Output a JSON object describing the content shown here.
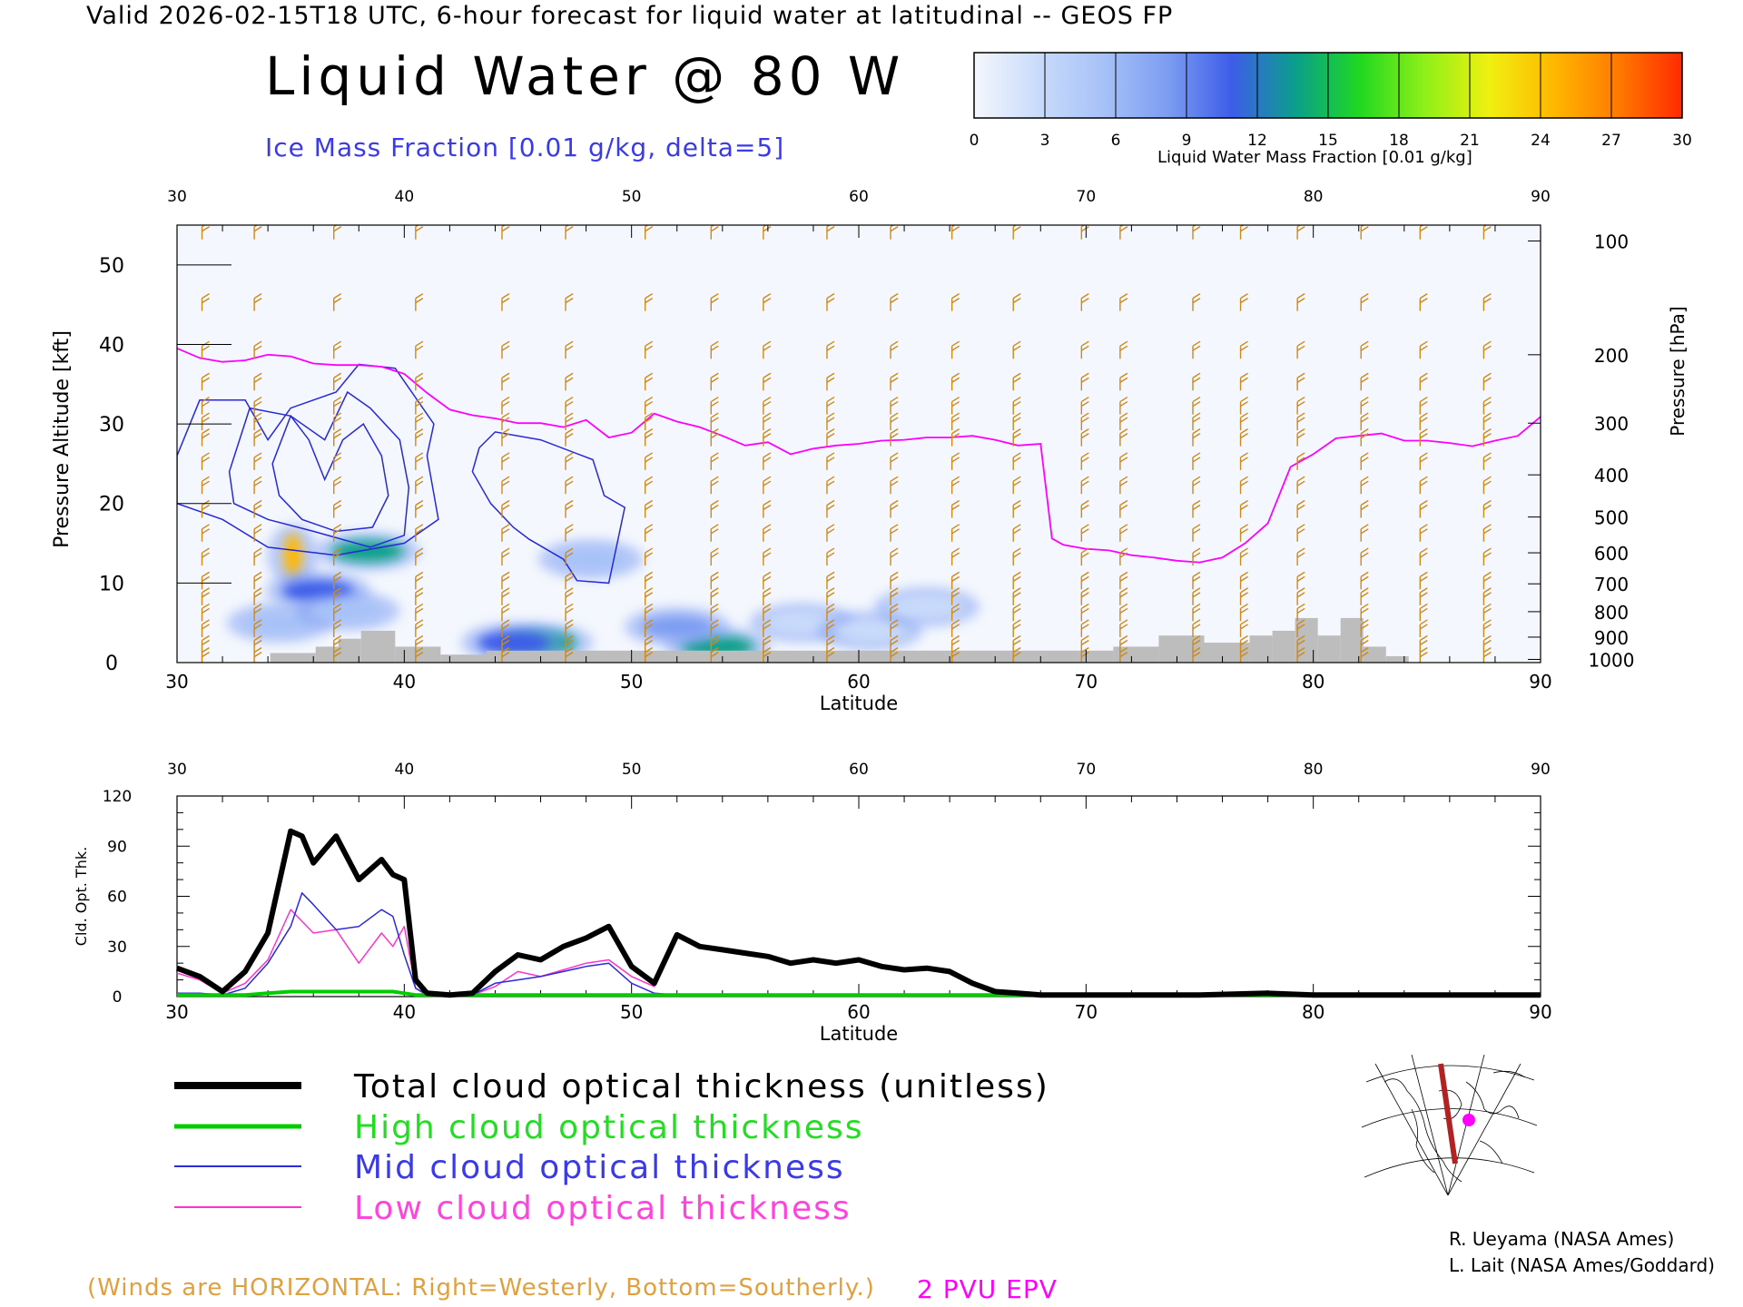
{
  "header": {
    "valid_line": "Valid 2026-02-15T18 UTC, 6-hour forecast for liquid water at latitudinal -- GEOS FP",
    "title": "Liquid Water @ 80 W",
    "ice_label": "Ice Mass Fraction [0.01 g/kg, delta=5]"
  },
  "colorbar": {
    "label": "Liquid Water Mass Fraction [0.01 g/kg]",
    "ticks": [
      "0",
      "3",
      "6",
      "9",
      "12",
      "15",
      "18",
      "21",
      "24",
      "27",
      "30"
    ],
    "colors": [
      "#f4f7fd",
      "#c9dbfb",
      "#a7c2f8",
      "#7d9df2",
      "#3d5de9",
      "#0aa08a",
      "#20d820",
      "#8ef019",
      "#f0f010",
      "#ffb800",
      "#ff7a00",
      "#ff2a00"
    ]
  },
  "chart_data": [
    {
      "type": "heatmap",
      "title": "Liquid Water @ 80 W",
      "xlabel": "Latitude",
      "ylabel": "Pressure Altitude [kft]",
      "y2label": "Pressure [hPa]",
      "xlim": [
        30,
        90
      ],
      "ylim": [
        0,
        55
      ],
      "x_ticks": [
        "30",
        "40",
        "50",
        "60",
        "70",
        "80",
        "90"
      ],
      "y_ticks": [
        "0",
        "10",
        "20",
        "30",
        "40",
        "50"
      ],
      "pressure_ticks": [
        {
          "label": "100",
          "kft": 53.0
        },
        {
          "label": "200",
          "kft": 38.7
        },
        {
          "label": "300",
          "kft": 30.1
        },
        {
          "label": "400",
          "kft": 23.6
        },
        {
          "label": "500",
          "kft": 18.3
        },
        {
          "label": "600",
          "kft": 13.8
        },
        {
          "label": "700",
          "kft": 9.9
        },
        {
          "label": "800",
          "kft": 6.4
        },
        {
          "label": "900",
          "kft": 3.2
        },
        {
          "label": "1000",
          "kft": 0.4
        }
      ],
      "liquid_water_blobs": [
        {
          "lat": 35.1,
          "kft": 13.5,
          "value": 24
        },
        {
          "lat": 38.4,
          "kft": 14.0,
          "value": 14
        },
        {
          "lat": 36.2,
          "kft": 9.0,
          "value": 12
        },
        {
          "lat": 34.5,
          "kft": 5.0,
          "value": 5
        },
        {
          "lat": 37.5,
          "kft": 6.5,
          "value": 5
        },
        {
          "lat": 46.0,
          "kft": 2.5,
          "value": 14
        },
        {
          "lat": 44.8,
          "kft": 2.5,
          "value": 12
        },
        {
          "lat": 53.8,
          "kft": 2.0,
          "value": 14
        },
        {
          "lat": 52.0,
          "kft": 4.5,
          "value": 8
        },
        {
          "lat": 48.2,
          "kft": 13.0,
          "value": 5
        },
        {
          "lat": 57.5,
          "kft": 5.0,
          "value": 4
        },
        {
          "lat": 60.5,
          "kft": 4.0,
          "value": 4
        },
        {
          "lat": 63.0,
          "kft": 7.0,
          "value": 3
        }
      ],
      "terrain": [
        {
          "lat": 34.1,
          "kft": 1.2
        },
        {
          "lat": 36.1,
          "kft": 2.0
        },
        {
          "lat": 37.1,
          "kft": 3.0
        },
        {
          "lat": 38.1,
          "kft": 4.0
        },
        {
          "lat": 39.6,
          "kft": 2.0
        },
        {
          "lat": 41.6,
          "kft": 1.0
        },
        {
          "lat": 43.6,
          "kft": 1.5
        },
        {
          "lat": 71.2,
          "kft": 2.0
        },
        {
          "lat": 73.2,
          "kft": 3.4
        },
        {
          "lat": 75.2,
          "kft": 2.5
        },
        {
          "lat": 77.2,
          "kft": 3.4
        },
        {
          "lat": 78.2,
          "kft": 4.0
        },
        {
          "lat": 79.2,
          "kft": 5.6
        },
        {
          "lat": 80.2,
          "kft": 3.4
        },
        {
          "lat": 81.2,
          "kft": 5.6
        },
        {
          "lat": 82.2,
          "kft": 2.0
        },
        {
          "lat": 83.2,
          "kft": 0.8
        }
      ],
      "pv2_line": [
        [
          30,
          39.5
        ],
        [
          31,
          38.3
        ],
        [
          32,
          37.8
        ],
        [
          33,
          38.0
        ],
        [
          34,
          38.7
        ],
        [
          35,
          38.5
        ],
        [
          36,
          37.6
        ],
        [
          37,
          37.4
        ],
        [
          38,
          37.4
        ],
        [
          39,
          37.2
        ],
        [
          40,
          36.3
        ],
        [
          41,
          33.9
        ],
        [
          42,
          31.8
        ],
        [
          43,
          31.1
        ],
        [
          44,
          30.7
        ],
        [
          45,
          30.1
        ],
        [
          46,
          30.1
        ],
        [
          47,
          29.6
        ],
        [
          48,
          30.5
        ],
        [
          49,
          28.3
        ],
        [
          50,
          28.9
        ],
        [
          51,
          31.3
        ],
        [
          52,
          30.3
        ],
        [
          53,
          29.6
        ],
        [
          54,
          28.5
        ],
        [
          55,
          27.3
        ],
        [
          56,
          27.7
        ],
        [
          57,
          26.2
        ],
        [
          58,
          26.9
        ],
        [
          59,
          27.3
        ],
        [
          60,
          27.5
        ],
        [
          61,
          27.9
        ],
        [
          62,
          28.0
        ],
        [
          63,
          28.3
        ],
        [
          64,
          28.3
        ],
        [
          65,
          28.5
        ],
        [
          66,
          28.0
        ],
        [
          67,
          27.3
        ],
        [
          68,
          27.5
        ],
        [
          68.5,
          15.6
        ],
        [
          69,
          14.8
        ],
        [
          70,
          14.3
        ],
        [
          71,
          14.1
        ],
        [
          72,
          13.5
        ],
        [
          73,
          13.2
        ],
        [
          74,
          12.8
        ],
        [
          75,
          12.6
        ],
        [
          76,
          13.2
        ],
        [
          77,
          15.0
        ],
        [
          78,
          17.5
        ],
        [
          79,
          24.6
        ],
        [
          80,
          26.2
        ],
        [
          81,
          28.2
        ],
        [
          82,
          28.5
        ],
        [
          83,
          28.8
        ],
        [
          84,
          27.9
        ],
        [
          85,
          27.9
        ],
        [
          86,
          27.6
        ],
        [
          87,
          27.2
        ],
        [
          88,
          27.9
        ],
        [
          89,
          28.5
        ],
        [
          90,
          30.9
        ]
      ],
      "ice_contours": [
        {
          "value": "5",
          "points": [
            [
              30,
              26
            ],
            [
              31,
              33
            ],
            [
              33,
              33
            ],
            [
              34,
              28
            ],
            [
              35,
              32
            ],
            [
              37,
              34
            ],
            [
              38,
              37.5
            ],
            [
              39.6,
              37
            ],
            [
              41.3,
              30
            ],
            [
              41,
              26
            ],
            [
              41.5,
              18
            ],
            [
              40,
              15
            ],
            [
              37,
              13.5
            ],
            [
              34,
              14.5
            ],
            [
              32,
              18
            ],
            [
              30,
              20
            ]
          ]
        },
        {
          "value": "10",
          "points": [
            [
              32.3,
              24
            ],
            [
              33.2,
              32
            ],
            [
              35,
              31
            ],
            [
              36.5,
              28
            ],
            [
              37.5,
              34
            ],
            [
              38.5,
              32
            ],
            [
              39.8,
              28
            ],
            [
              40.2,
              22
            ],
            [
              40,
              16
            ],
            [
              38.5,
              14.5
            ],
            [
              36,
              16.5
            ],
            [
              34,
              18
            ],
            [
              32.5,
              20
            ]
          ]
        },
        {
          "value": "15",
          "points": [
            [
              34.2,
              25
            ],
            [
              35,
              31
            ],
            [
              35.8,
              28
            ],
            [
              36.5,
              23
            ],
            [
              37.3,
              28
            ],
            [
              38.2,
              30
            ],
            [
              39,
              26
            ],
            [
              39.3,
              21
            ],
            [
              38.6,
              17
            ],
            [
              37,
              16.5
            ],
            [
              35.5,
              18
            ],
            [
              34.5,
              21
            ]
          ]
        },
        {
          "value": "5",
          "points": [
            [
              43.3,
              27
            ],
            [
              44,
              29
            ],
            [
              46,
              28
            ],
            [
              48.3,
              25.5
            ],
            [
              48.8,
              21
            ],
            [
              49.7,
              19.5
            ],
            [
              49,
              10
            ],
            [
              47.6,
              10.3
            ],
            [
              47,
              13
            ],
            [
              45.5,
              15.5
            ],
            [
              44.8,
              17
            ],
            [
              43.8,
              20
            ],
            [
              43,
              24
            ]
          ]
        }
      ],
      "wind_barb_columns": [
        31.1,
        33.4,
        36.9,
        40.5,
        44.3,
        47.1,
        50.6,
        53.5,
        55.8,
        58.6,
        61.4,
        64.1,
        66.8,
        69.8,
        71.5,
        74.7,
        76.8,
        79.3,
        82.1,
        84.7,
        87.5
      ],
      "wind_barb_levels": [
        54,
        45,
        39,
        35,
        32,
        30,
        28,
        25,
        22,
        19,
        16,
        13,
        10,
        8,
        6,
        4,
        2,
        0.5
      ]
    },
    {
      "type": "line",
      "xlabel": "Latitude",
      "ylabel": "Cld. Opt. Thk.",
      "xlim": [
        30,
        90
      ],
      "ylim": [
        0,
        120
      ],
      "x_ticks": [
        "30",
        "40",
        "50",
        "60",
        "70",
        "80",
        "90"
      ],
      "y_ticks": [
        "0",
        "30",
        "60",
        "90",
        "120"
      ],
      "x": [
        30,
        31,
        32,
        33,
        34,
        35,
        35.5,
        36,
        37,
        38,
        39,
        39.5,
        40,
        40.5,
        41,
        42,
        43,
        44,
        45,
        46,
        47,
        48,
        49,
        50,
        51,
        52,
        53,
        54,
        55,
        56,
        57,
        58,
        59,
        60,
        61,
        62,
        63,
        64,
        65,
        66,
        67,
        68,
        70,
        75,
        78,
        80,
        85,
        90
      ],
      "series": [
        {
          "name": "Total cloud optical thickness (unitless)",
          "color": "#000000",
          "width": 6,
          "values": [
            17,
            12,
            3,
            15,
            38,
            99,
            96,
            80,
            96,
            70,
            82,
            73,
            70,
            10,
            2,
            1,
            2,
            15,
            25,
            22,
            30,
            35,
            42,
            18,
            8,
            37,
            30,
            28,
            26,
            24,
            20,
            22,
            20,
            22,
            18,
            16,
            17,
            15,
            8,
            3,
            2,
            1,
            1,
            1,
            2,
            1,
            1,
            1
          ]
        },
        {
          "name": "High cloud optical thickness",
          "color": "#00cc00",
          "width": 4,
          "values": [
            1,
            1,
            1,
            1,
            2,
            3,
            3,
            3,
            3,
            3,
            3,
            3,
            2,
            1,
            1,
            1,
            1,
            1,
            1,
            1,
            1,
            1,
            1,
            1,
            1,
            1,
            1,
            1,
            1,
            1,
            1,
            1,
            1,
            1,
            1,
            1,
            1,
            1,
            1,
            1,
            1,
            1,
            1,
            1,
            1,
            1,
            1,
            1
          ]
        },
        {
          "name": "Mid cloud optical thickness",
          "color": "#2b2bd8",
          "width": 1.5,
          "values": [
            2,
            2,
            1,
            5,
            20,
            42,
            62,
            55,
            40,
            42,
            52,
            48,
            25,
            5,
            1,
            1,
            1,
            8,
            10,
            12,
            15,
            18,
            20,
            8,
            2,
            1,
            1,
            1,
            1,
            1,
            1,
            1,
            1,
            1,
            1,
            1,
            1,
            1,
            1,
            1,
            1,
            1,
            1,
            1,
            1,
            1,
            1,
            1
          ]
        },
        {
          "name": "Low cloud optical thickness",
          "color": "#ff33cc",
          "width": 1.5,
          "values": [
            14,
            10,
            2,
            8,
            22,
            52,
            45,
            38,
            40,
            20,
            38,
            30,
            42,
            5,
            1,
            1,
            1,
            6,
            15,
            12,
            16,
            20,
            22,
            12,
            6,
            36,
            29,
            27,
            25,
            23,
            19,
            21,
            19,
            21,
            17,
            15,
            16,
            14,
            7,
            2,
            1,
            1,
            1,
            1,
            2,
            1,
            1,
            1
          ]
        }
      ]
    }
  ],
  "legend": [
    {
      "label": "Total cloud optical thickness (unitless)",
      "color": "#000000",
      "line_color": "#000000",
      "width": 8
    },
    {
      "label": "High cloud optical thickness",
      "color": "#22dd22",
      "line_color": "#00cc00",
      "width": 5
    },
    {
      "label": "Mid cloud optical thickness",
      "color": "#3a3ae8",
      "line_color": "#2b2bd8",
      "width": 2
    },
    {
      "label": "Low cloud optical thickness",
      "color": "#ff44dd",
      "line_color": "#ff33cc",
      "width": 2
    }
  ],
  "footer": {
    "winds_note": "(Winds are HORIZONTAL: Right=Westerly, Bottom=Southerly.)",
    "pv_label": "2 PVU EPV",
    "credit1": "R. Ueyama (NASA Ames)",
    "credit2": "L. Lait (NASA Ames/Goddard)"
  }
}
